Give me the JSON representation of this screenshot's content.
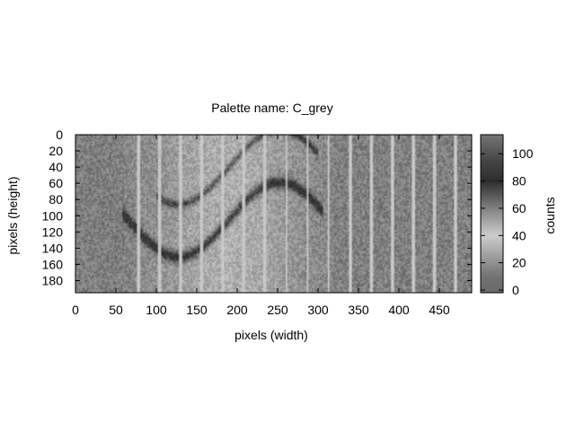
{
  "chart_data": {
    "type": "heatmap",
    "title": "Palette name: C_grey",
    "xlabel": "pixels (width)",
    "ylabel": "pixels (height)",
    "colorbar_label": "counts",
    "xlim": [
      0,
      490
    ],
    "ylim": [
      0,
      195
    ],
    "y_reversed": true,
    "x_ticks": [
      0,
      50,
      100,
      150,
      200,
      250,
      300,
      350,
      400,
      450
    ],
    "y_ticks": [
      0,
      20,
      40,
      60,
      80,
      100,
      120,
      140,
      160,
      180
    ],
    "colorbar_range": [
      -2,
      114
    ],
    "colorbar_ticks": [
      0,
      20,
      40,
      60,
      80,
      100
    ],
    "palette_note": "non-monotonic grey palette: mid grey at low counts, light near 40, dark near 80, grey at high counts",
    "background_level": 60,
    "curves": [
      {
        "name": "",
        "amplitude": 46,
        "offset": 105,
        "period": 250,
        "phase_x": 65,
        "width": 7,
        "peak": 88,
        "x_from": 58,
        "x_to": 306
      },
      {
        "name": "",
        "amplitude": 46,
        "offset": 40,
        "period": 250,
        "phase_x": 65,
        "width": 5,
        "peak": 82,
        "x_from": 100,
        "x_to": 300
      }
    ],
    "stripes_x": [
      78,
      104,
      130,
      156,
      182,
      208,
      234,
      261,
      287,
      313,
      340,
      366,
      392,
      418,
      444,
      470
    ]
  }
}
